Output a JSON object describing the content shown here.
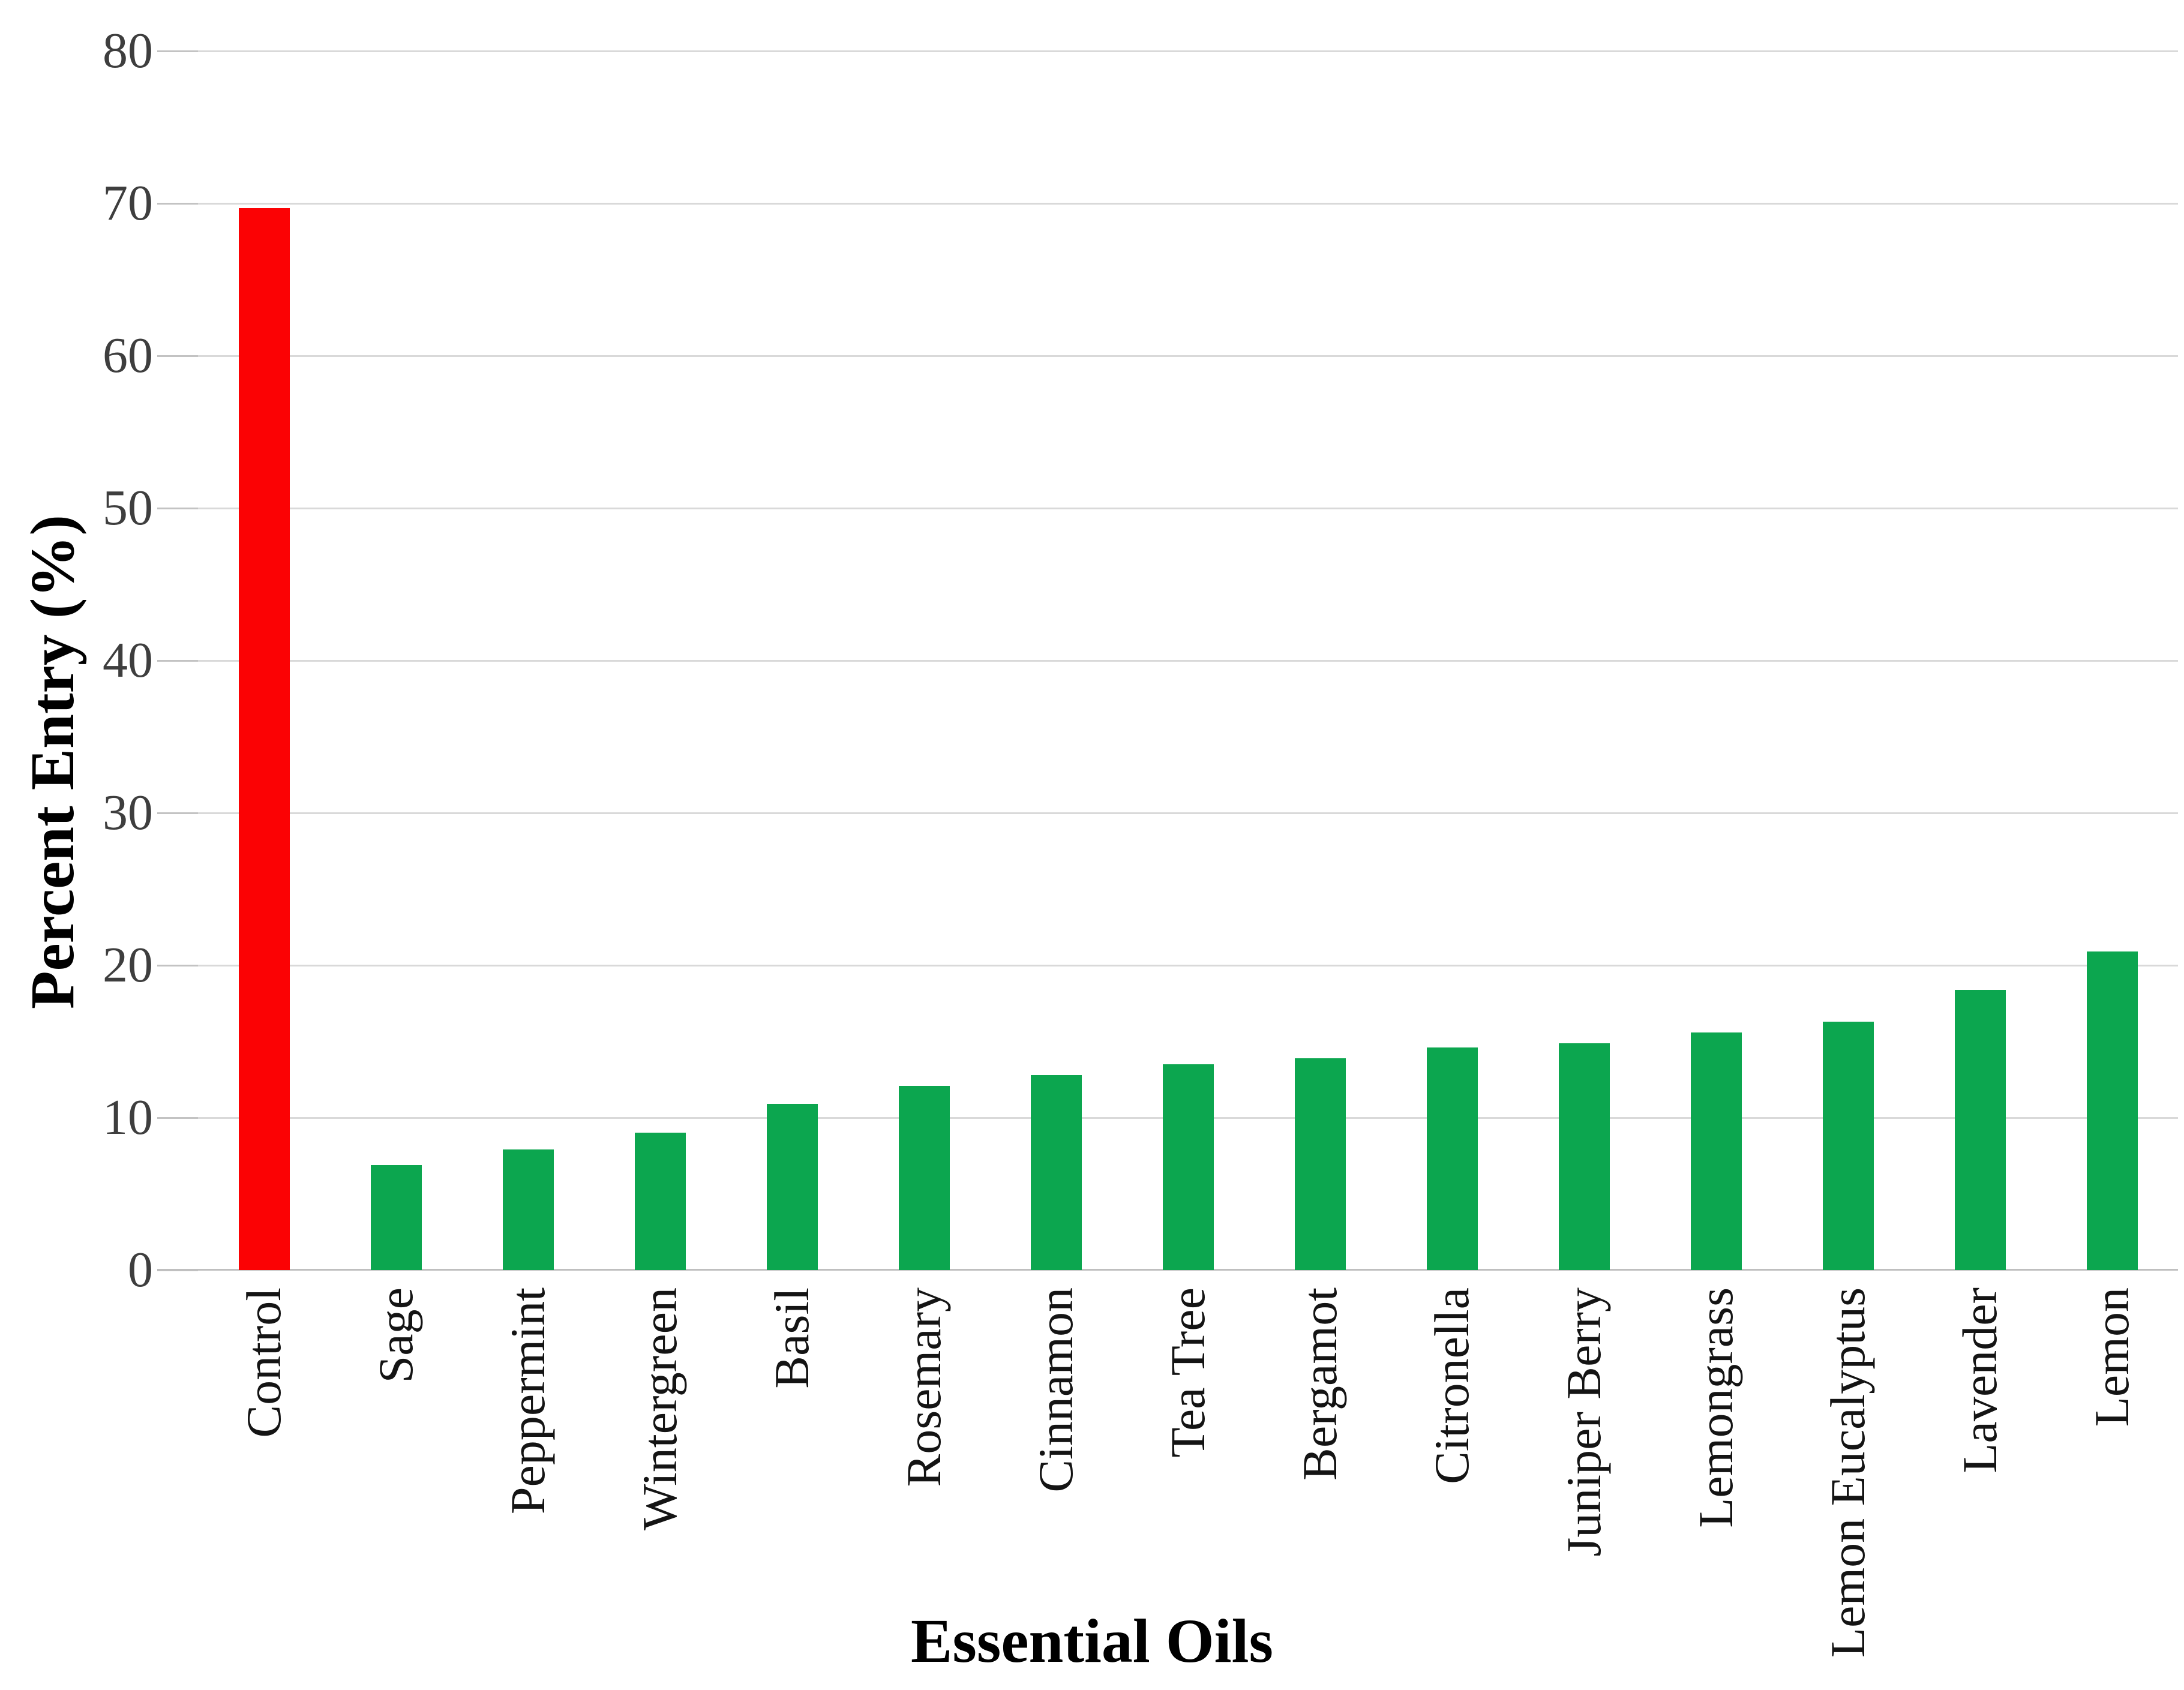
{
  "page": {
    "background_color": "#ffffff"
  },
  "chart_data": {
    "type": "bar",
    "title": "",
    "xlabel": "Essential Oils",
    "ylabel": "Percent Entry (%)",
    "categories": [
      "Control",
      "Sage",
      "Peppermint",
      "Wintergreen",
      "Basil",
      "Rosemary",
      "Cinnamon",
      "Tea Tree",
      "Bergamot",
      "Citronella",
      "Juniper Berry",
      "Lemongrass",
      "Lemon Eucalyptus",
      "Lavender",
      "Lemon"
    ],
    "values": [
      69.7,
      6.9,
      7.9,
      9.0,
      10.9,
      12.1,
      12.8,
      13.5,
      13.9,
      14.6,
      14.9,
      15.6,
      16.3,
      18.4,
      20.9
    ],
    "bar_colors": [
      "#fb0204",
      "#0ca64f",
      "#0ca64f",
      "#0ca64f",
      "#0ca64f",
      "#0ca64f",
      "#0ca64f",
      "#0ca64f",
      "#0ca64f",
      "#0ca64f",
      "#0ca64f",
      "#0ca64f",
      "#0ca64f",
      "#0ca64f",
      "#0ca64f"
    ],
    "ylim": [
      0,
      80
    ],
    "yticks": [
      0,
      10,
      20,
      30,
      40,
      50,
      60,
      70,
      80
    ],
    "grid": "horizontal",
    "legend": "none",
    "style": {
      "control_color": "#fb0204",
      "oil_color": "#0ca64f",
      "gridline_color": "#d9d9d9",
      "axis_line_color": "#bfbfbf",
      "tick_label_color": "#3e3e3e",
      "category_label_color": "#141414",
      "axis_title_color": "#000000"
    }
  }
}
